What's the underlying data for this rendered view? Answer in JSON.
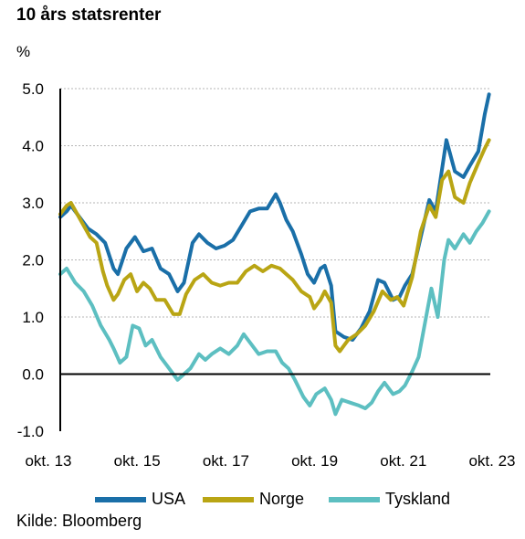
{
  "chart_data": {
    "type": "line",
    "title": "10 års statsrenter",
    "ylabel": "%",
    "ylim": [
      -1.0,
      5.0
    ],
    "yticks": [
      "5.0",
      "4.0",
      "3.0",
      "2.0",
      "1.0",
      "0.0",
      "-1.0"
    ],
    "xlim": [
      2013.75,
      2023.83
    ],
    "xticks": [
      "okt. 13",
      "okt. 15",
      "okt. 17",
      "okt. 19",
      "okt. 21",
      "okt. 23"
    ],
    "grid": "horizontal dotted",
    "legend": "bottom",
    "source": "Kilde: Bloomberg",
    "series": [
      {
        "name": "USA",
        "color": "#1a6fa8",
        "points": [
          [
            2013.75,
            2.75
          ],
          [
            2013.9,
            2.85
          ],
          [
            2014.0,
            2.95
          ],
          [
            2014.2,
            2.75
          ],
          [
            2014.4,
            2.55
          ],
          [
            2014.6,
            2.45
          ],
          [
            2014.8,
            2.3
          ],
          [
            2015.0,
            1.85
          ],
          [
            2015.1,
            1.75
          ],
          [
            2015.3,
            2.2
          ],
          [
            2015.5,
            2.4
          ],
          [
            2015.7,
            2.15
          ],
          [
            2015.9,
            2.2
          ],
          [
            2016.1,
            1.85
          ],
          [
            2016.3,
            1.75
          ],
          [
            2016.5,
            1.45
          ],
          [
            2016.65,
            1.6
          ],
          [
            2016.85,
            2.3
          ],
          [
            2017.0,
            2.45
          ],
          [
            2017.2,
            2.3
          ],
          [
            2017.4,
            2.2
          ],
          [
            2017.6,
            2.25
          ],
          [
            2017.8,
            2.35
          ],
          [
            2018.0,
            2.6
          ],
          [
            2018.2,
            2.85
          ],
          [
            2018.4,
            2.9
          ],
          [
            2018.6,
            2.9
          ],
          [
            2018.8,
            3.15
          ],
          [
            2018.9,
            3.0
          ],
          [
            2019.05,
            2.7
          ],
          [
            2019.2,
            2.5
          ],
          [
            2019.4,
            2.1
          ],
          [
            2019.55,
            1.75
          ],
          [
            2019.7,
            1.6
          ],
          [
            2019.85,
            1.85
          ],
          [
            2019.95,
            1.9
          ],
          [
            2020.1,
            1.55
          ],
          [
            2020.2,
            0.75
          ],
          [
            2020.4,
            0.65
          ],
          [
            2020.6,
            0.6
          ],
          [
            2020.8,
            0.8
          ],
          [
            2021.0,
            1.1
          ],
          [
            2021.2,
            1.65
          ],
          [
            2021.35,
            1.6
          ],
          [
            2021.55,
            1.3
          ],
          [
            2021.7,
            1.35
          ],
          [
            2021.83,
            1.55
          ],
          [
            2022.0,
            1.75
          ],
          [
            2022.2,
            2.4
          ],
          [
            2022.4,
            3.05
          ],
          [
            2022.55,
            2.85
          ],
          [
            2022.8,
            4.1
          ],
          [
            2023.0,
            3.55
          ],
          [
            2023.2,
            3.45
          ],
          [
            2023.35,
            3.65
          ],
          [
            2023.55,
            3.9
          ],
          [
            2023.7,
            4.55
          ],
          [
            2023.8,
            4.9
          ]
        ]
      },
      {
        "name": "Norge",
        "color": "#b9a514",
        "points": [
          [
            2013.75,
            2.8
          ],
          [
            2013.9,
            2.95
          ],
          [
            2014.0,
            3.0
          ],
          [
            2014.15,
            2.8
          ],
          [
            2014.3,
            2.6
          ],
          [
            2014.45,
            2.4
          ],
          [
            2014.6,
            2.3
          ],
          [
            2014.75,
            1.8
          ],
          [
            2014.85,
            1.55
          ],
          [
            2015.0,
            1.3
          ],
          [
            2015.1,
            1.4
          ],
          [
            2015.25,
            1.65
          ],
          [
            2015.4,
            1.75
          ],
          [
            2015.55,
            1.45
          ],
          [
            2015.7,
            1.6
          ],
          [
            2015.85,
            1.5
          ],
          [
            2016.0,
            1.3
          ],
          [
            2016.2,
            1.3
          ],
          [
            2016.4,
            1.05
          ],
          [
            2016.55,
            1.05
          ],
          [
            2016.7,
            1.4
          ],
          [
            2016.9,
            1.65
          ],
          [
            2017.1,
            1.75
          ],
          [
            2017.3,
            1.6
          ],
          [
            2017.5,
            1.55
          ],
          [
            2017.7,
            1.6
          ],
          [
            2017.9,
            1.6
          ],
          [
            2018.1,
            1.8
          ],
          [
            2018.3,
            1.9
          ],
          [
            2018.5,
            1.8
          ],
          [
            2018.7,
            1.9
          ],
          [
            2018.9,
            1.85
          ],
          [
            2019.05,
            1.75
          ],
          [
            2019.2,
            1.65
          ],
          [
            2019.4,
            1.45
          ],
          [
            2019.6,
            1.35
          ],
          [
            2019.7,
            1.15
          ],
          [
            2019.85,
            1.3
          ],
          [
            2019.95,
            1.45
          ],
          [
            2020.1,
            1.25
          ],
          [
            2020.2,
            0.5
          ],
          [
            2020.3,
            0.4
          ],
          [
            2020.5,
            0.6
          ],
          [
            2020.7,
            0.7
          ],
          [
            2020.9,
            0.85
          ],
          [
            2021.1,
            1.1
          ],
          [
            2021.3,
            1.45
          ],
          [
            2021.5,
            1.3
          ],
          [
            2021.65,
            1.35
          ],
          [
            2021.8,
            1.2
          ],
          [
            2022.0,
            1.7
          ],
          [
            2022.2,
            2.5
          ],
          [
            2022.4,
            2.95
          ],
          [
            2022.55,
            2.75
          ],
          [
            2022.7,
            3.4
          ],
          [
            2022.85,
            3.55
          ],
          [
            2023.0,
            3.1
          ],
          [
            2023.2,
            3.0
          ],
          [
            2023.35,
            3.35
          ],
          [
            2023.55,
            3.7
          ],
          [
            2023.7,
            3.95
          ],
          [
            2023.8,
            4.1
          ]
        ]
      },
      {
        "name": "Tyskland",
        "color": "#5dbfc1",
        "points": [
          [
            2013.75,
            1.75
          ],
          [
            2013.9,
            1.85
          ],
          [
            2014.1,
            1.6
          ],
          [
            2014.3,
            1.45
          ],
          [
            2014.5,
            1.2
          ],
          [
            2014.7,
            0.85
          ],
          [
            2014.9,
            0.6
          ],
          [
            2015.0,
            0.45
          ],
          [
            2015.15,
            0.2
          ],
          [
            2015.3,
            0.3
          ],
          [
            2015.45,
            0.85
          ],
          [
            2015.6,
            0.8
          ],
          [
            2015.75,
            0.5
          ],
          [
            2015.9,
            0.6
          ],
          [
            2016.1,
            0.3
          ],
          [
            2016.25,
            0.15
          ],
          [
            2016.4,
            0.0
          ],
          [
            2016.5,
            -0.1
          ],
          [
            2016.65,
            0.0
          ],
          [
            2016.8,
            0.1
          ],
          [
            2017.0,
            0.35
          ],
          [
            2017.15,
            0.25
          ],
          [
            2017.3,
            0.35
          ],
          [
            2017.5,
            0.45
          ],
          [
            2017.7,
            0.35
          ],
          [
            2017.9,
            0.5
          ],
          [
            2018.05,
            0.7
          ],
          [
            2018.2,
            0.55
          ],
          [
            2018.4,
            0.35
          ],
          [
            2018.6,
            0.4
          ],
          [
            2018.8,
            0.4
          ],
          [
            2018.95,
            0.2
          ],
          [
            2019.1,
            0.1
          ],
          [
            2019.25,
            -0.1
          ],
          [
            2019.45,
            -0.4
          ],
          [
            2019.6,
            -0.55
          ],
          [
            2019.75,
            -0.35
          ],
          [
            2019.95,
            -0.25
          ],
          [
            2020.1,
            -0.45
          ],
          [
            2020.2,
            -0.7
          ],
          [
            2020.35,
            -0.45
          ],
          [
            2020.55,
            -0.5
          ],
          [
            2020.75,
            -0.55
          ],
          [
            2020.9,
            -0.6
          ],
          [
            2021.05,
            -0.5
          ],
          [
            2021.2,
            -0.3
          ],
          [
            2021.35,
            -0.15
          ],
          [
            2021.55,
            -0.35
          ],
          [
            2021.7,
            -0.3
          ],
          [
            2021.83,
            -0.2
          ],
          [
            2022.0,
            0.05
          ],
          [
            2022.15,
            0.3
          ],
          [
            2022.3,
            0.9
          ],
          [
            2022.45,
            1.5
          ],
          [
            2022.6,
            1.0
          ],
          [
            2022.75,
            2.0
          ],
          [
            2022.85,
            2.35
          ],
          [
            2023.0,
            2.2
          ],
          [
            2023.2,
            2.45
          ],
          [
            2023.35,
            2.3
          ],
          [
            2023.5,
            2.5
          ],
          [
            2023.65,
            2.65
          ],
          [
            2023.8,
            2.85
          ]
        ]
      }
    ]
  }
}
